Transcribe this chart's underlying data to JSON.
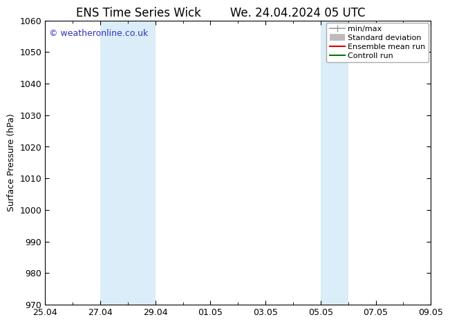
{
  "title_left": "ENS Time Series Wick",
  "title_right": "We. 24.04.2024 05 UTC",
  "ylabel": "Surface Pressure (hPa)",
  "ylim": [
    970,
    1060
  ],
  "yticks": [
    970,
    980,
    990,
    1000,
    1010,
    1020,
    1030,
    1040,
    1050,
    1060
  ],
  "x_start_day": 0,
  "x_end_day": 14,
  "xtick_labels": [
    "25.04",
    "27.04",
    "29.04",
    "01.05",
    "03.05",
    "05.05",
    "07.05",
    "09.05"
  ],
  "xtick_positions": [
    0,
    2,
    4,
    6,
    8,
    10,
    12,
    14
  ],
  "shaded_regions": [
    {
      "x_start": 2,
      "x_end": 4,
      "color": "#daedf8"
    },
    {
      "x_start": 10,
      "x_end": 11,
      "color": "#daedf8"
    }
  ],
  "watermark_text": "© weatheronline.co.uk",
  "watermark_color": "#3333bb",
  "legend_items": [
    {
      "label": "min/max",
      "color": "#999999",
      "lw": 1.2
    },
    {
      "label": "Standard deviation",
      "color": "#bbbbbb",
      "lw": 7
    },
    {
      "label": "Ensemble mean run",
      "color": "#dd0000",
      "lw": 1.5
    },
    {
      "label": "Controll run",
      "color": "#007700",
      "lw": 1.5
    }
  ],
  "bg_color": "#ffffff",
  "spine_color": "#000000",
  "title_fontsize": 12,
  "label_fontsize": 9,
  "tick_fontsize": 9,
  "watermark_fontsize": 9
}
